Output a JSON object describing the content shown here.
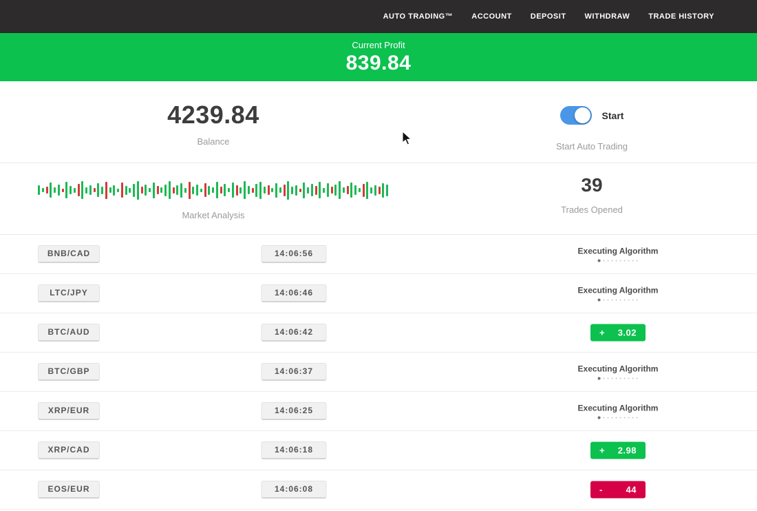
{
  "nav": {
    "items": [
      "AUTO TRADING™",
      "ACCOUNT",
      "DEPOSIT",
      "WITHDRAW",
      "TRADE HISTORY"
    ]
  },
  "profit_banner": {
    "label": "Current Profit",
    "value": "839.84"
  },
  "hero": {
    "balance_value": "4239.84",
    "balance_label": "Balance",
    "toggle_label": "Start",
    "toggle_caption": "Start Auto Trading",
    "toggle_on": true
  },
  "market": {
    "label": "Market Analysis",
    "trades_opened_value": "39",
    "trades_opened_label": "Trades Opened",
    "bars": "14g 6g 10r 22g 8g 16g 5r 24g 12g 7g 18r 26g 9g 14g 6r 20g 11g 25r 8g 15g 5g 22r 13g 7g 19g 27g 10r 16g 6g 23g 12r 8g 17g 26g 9r 14g 21g 7g 25r 11g 16g 5g 20r 13g 8g 24g 10r 18g 6g 22g 15r 9g 26g 12g 7r 19g 25g 10g 14r 6g 21g 8g 17r 27g 11g 15g 5r 23g 9g 18g 13r 24g 7g 20g 10r 16g 26g 8g 12r 22g 14g 6g 19r 25g 9g 15g 11r 21g 17g"
  },
  "trades": {
    "executing_label": "Executing Algorithm",
    "rows": [
      {
        "pair": "BNB/CAD",
        "time": "14:06:56",
        "status": "executing"
      },
      {
        "pair": "LTC/JPY",
        "time": "14:06:46",
        "status": "executing"
      },
      {
        "pair": "BTC/AUD",
        "time": "14:06:42",
        "status": "profit",
        "sign": "+",
        "value": "3.02"
      },
      {
        "pair": "BTC/GBP",
        "time": "14:06:37",
        "status": "executing"
      },
      {
        "pair": "XRP/EUR",
        "time": "14:06:25",
        "status": "executing"
      },
      {
        "pair": "XRP/CAD",
        "time": "14:06:18",
        "status": "profit",
        "sign": "+",
        "value": "2.98"
      },
      {
        "pair": "EOS/EUR",
        "time": "14:06:08",
        "status": "loss",
        "sign": "-",
        "value": "44"
      }
    ]
  },
  "colors": {
    "green": "#0cc14e",
    "red": "#d50045",
    "toggle_blue": "#4a97e8",
    "nav_bg": "#2d2b2b"
  }
}
